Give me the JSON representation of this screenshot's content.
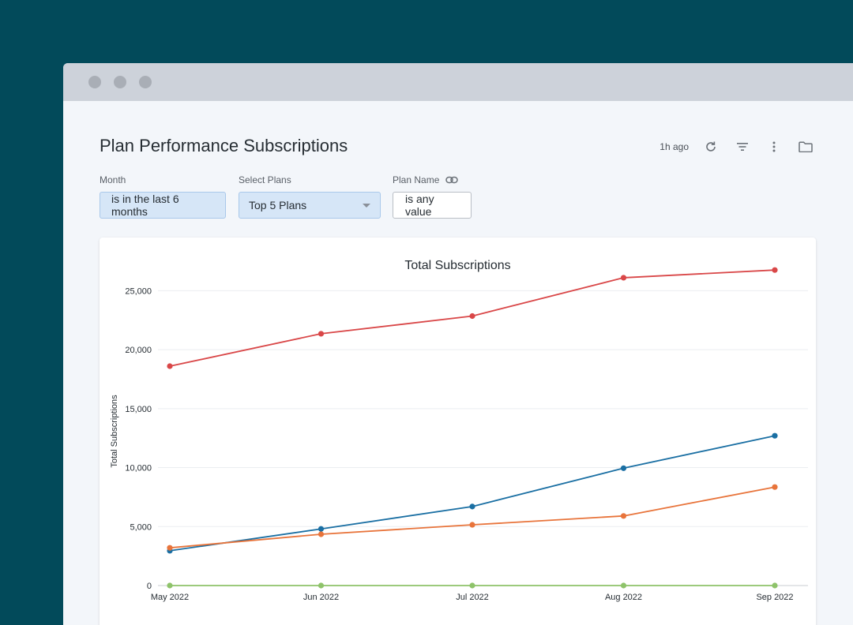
{
  "window": {
    "controls": [
      "close",
      "minimize",
      "maximize"
    ]
  },
  "header": {
    "title": "Plan Performance Subscriptions",
    "last_updated": "1h ago",
    "icons": [
      "refresh-icon",
      "filter-icon",
      "more-vert-icon",
      "folder-icon"
    ]
  },
  "filters": [
    {
      "label": "Month",
      "value": "is in the last 6 months"
    },
    {
      "label": "Select Plans",
      "value": "Top 5 Plans"
    },
    {
      "label": "Plan Name",
      "value": "is any value"
    }
  ],
  "colors": {
    "background": "#024a5a",
    "series": [
      "#d94748",
      "#1a6fa3",
      "#e8743b",
      "#8ec36a"
    ]
  },
  "chart_data": {
    "type": "line",
    "title": "Total Subscriptions",
    "xlabel": "",
    "ylabel": "Total Subscriptions",
    "x": [
      "May 2022",
      "Jun 2022",
      "Jul 2022",
      "Aug 2022",
      "Sep 2022"
    ],
    "ylim": [
      0,
      27500
    ],
    "yticks": [
      0,
      5000,
      10000,
      15000,
      20000,
      25000
    ],
    "ytick_labels": [
      "0",
      "5,000",
      "10,000",
      "15,000",
      "20,000",
      "25,000"
    ],
    "grid": true,
    "legend": "none",
    "series": [
      {
        "values": [
          18600,
          21350,
          22850,
          26100,
          26750
        ],
        "color": "#d94748"
      },
      {
        "values": [
          2950,
          4800,
          6700,
          9950,
          12700
        ],
        "color": "#1a6fa3"
      },
      {
        "values": [
          3200,
          4350,
          5150,
          5900,
          8350
        ],
        "color": "#e8743b"
      },
      {
        "values": [
          0,
          0,
          0,
          0,
          0
        ],
        "color": "#8ec36a"
      }
    ]
  }
}
